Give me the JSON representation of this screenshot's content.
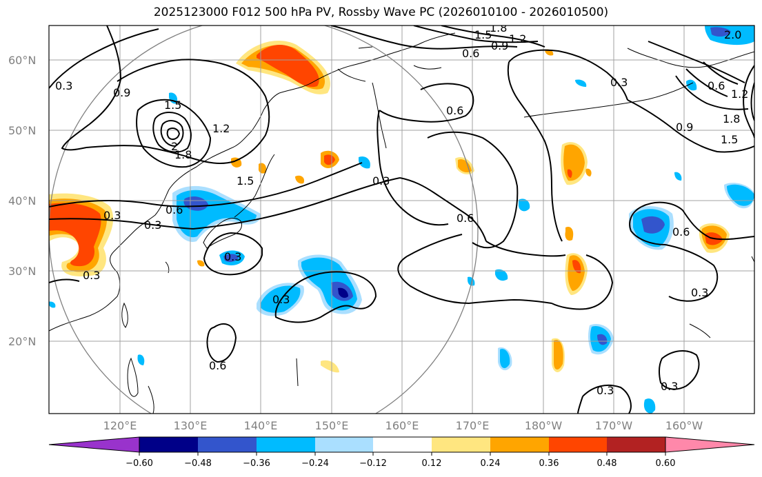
{
  "title": "2025123000 F012 500 hPa PV, Rossby Wave PC (2026010100 - 2026010500)",
  "map": {
    "lat_labels": [
      "60°N",
      "50°N",
      "40°N",
      "30°N",
      "20°N"
    ],
    "lon_labels": [
      "120°E",
      "130°E",
      "140°E",
      "150°E",
      "160°E",
      "170°E",
      "180°W",
      "170°W",
      "160°W"
    ],
    "contour_labels": [
      "0.3",
      "0.9",
      "1.5",
      "1.2",
      "1.8",
      "2",
      "1.5",
      "0.6",
      "0.3",
      "0.3",
      "0.3",
      "0.3",
      "0.6",
      "0.3",
      "0.6",
      "0.6",
      "0.3",
      "1.5",
      "0.9",
      "1.2",
      "1.8",
      "0.6",
      "0.3",
      "0.6",
      "0.3",
      "0.3",
      "0.3",
      "0.9",
      "1.5",
      "1.8",
      "1.2",
      "2.0",
      "0.6"
    ],
    "colors": {
      "grid": "#a0a0a0",
      "coast": "#000000",
      "circle": "#808080"
    }
  },
  "colorbar": {
    "tick_labels": [
      "−0.60",
      "−0.48",
      "−0.36",
      "−0.24",
      "−0.12",
      "0.12",
      "0.24",
      "0.36",
      "0.48",
      "0.60"
    ],
    "colors": [
      "#9933cc",
      "#000088",
      "#3355cc",
      "#00bbff",
      "#aadfff",
      "#ffffff",
      "#ffe680",
      "#ffa500",
      "#ff4500",
      "#b22222",
      "#ff88aa"
    ]
  }
}
